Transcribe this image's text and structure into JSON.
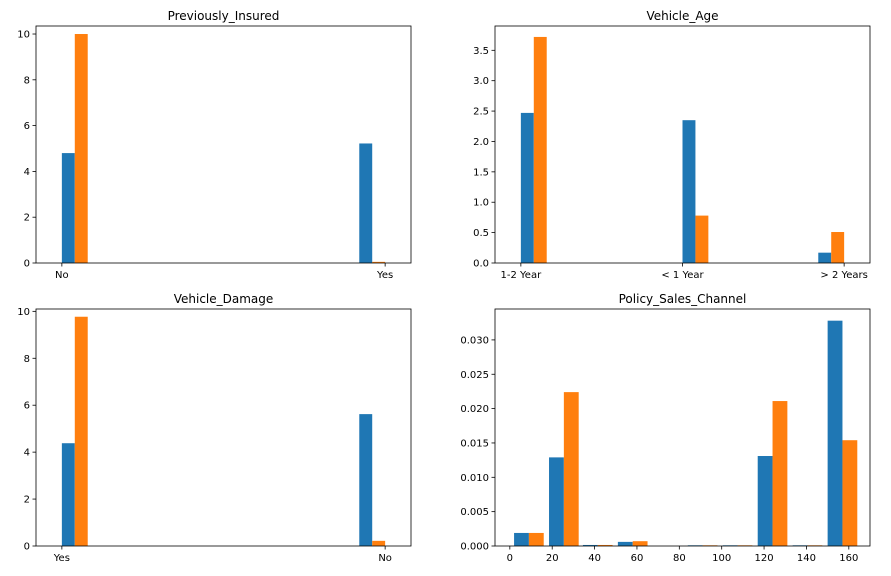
{
  "colors": {
    "series_a": "#1f77b4",
    "series_b": "#ff7f0e"
  },
  "chart_data": [
    {
      "type": "bar",
      "title": "Previously_Insured",
      "xlim": [
        -0.08,
        1.08
      ],
      "ylim": [
        0,
        10.35
      ],
      "x_ticks": [
        0,
        1
      ],
      "x_tick_labels": [
        "No",
        "Yes"
      ],
      "y_ticks": [
        0,
        2,
        4,
        6,
        8,
        10
      ],
      "y_tick_labels": [
        "0",
        "2",
        "4",
        "6",
        "8",
        "10"
      ],
      "bars": [
        {
          "series": 0,
          "x0": 0.0,
          "x1": 0.04,
          "value": 4.8
        },
        {
          "series": 1,
          "x0": 0.04,
          "x1": 0.08,
          "value": 10.0
        },
        {
          "series": 0,
          "x0": 0.92,
          "x1": 0.96,
          "value": 5.22
        },
        {
          "series": 1,
          "x0": 0.96,
          "x1": 1.0,
          "value": 0.05
        }
      ]
    },
    {
      "type": "bar",
      "title": "Vehicle_Age",
      "xlim": [
        -0.16,
        2.16
      ],
      "ylim": [
        0,
        3.9
      ],
      "x_ticks": [
        0,
        1,
        2
      ],
      "x_tick_labels": [
        "1-2 Year",
        "< 1 Year",
        "> 2 Years"
      ],
      "y_ticks": [
        0,
        0.5,
        1,
        1.5,
        2,
        2.5,
        3,
        3.5
      ],
      "y_tick_labels": [
        "0.0",
        "0.5",
        "1.0",
        "1.5",
        "2.0",
        "2.5",
        "3.0",
        "3.5"
      ],
      "bars": [
        {
          "series": 0,
          "x0": 0.0,
          "x1": 0.08,
          "value": 2.47
        },
        {
          "series": 1,
          "x0": 0.08,
          "x1": 0.16,
          "value": 3.72
        },
        {
          "series": 0,
          "x0": 1.0,
          "x1": 1.08,
          "value": 2.35
        },
        {
          "series": 1,
          "x0": 1.08,
          "x1": 1.16,
          "value": 0.78
        },
        {
          "series": 0,
          "x0": 1.84,
          "x1": 1.92,
          "value": 0.17
        },
        {
          "series": 1,
          "x0": 1.92,
          "x1": 2.0,
          "value": 0.51
        }
      ]
    },
    {
      "type": "bar",
      "title": "Vehicle_Damage",
      "xlim": [
        -0.08,
        1.08
      ],
      "ylim": [
        0,
        10.1
      ],
      "x_ticks": [
        0,
        1
      ],
      "x_tick_labels": [
        "Yes",
        "No"
      ],
      "y_ticks": [
        0,
        2,
        4,
        6,
        8,
        10
      ],
      "y_tick_labels": [
        "0",
        "2",
        "4",
        "6",
        "8",
        "10"
      ],
      "bars": [
        {
          "series": 0,
          "x0": 0.0,
          "x1": 0.04,
          "value": 4.38
        },
        {
          "series": 1,
          "x0": 0.04,
          "x1": 0.08,
          "value": 9.77
        },
        {
          "series": 0,
          "x0": 0.92,
          "x1": 0.96,
          "value": 5.62
        },
        {
          "series": 1,
          "x0": 0.96,
          "x1": 1.0,
          "value": 0.22
        }
      ]
    },
    {
      "type": "bar",
      "title": "Policy_Sales_Channel",
      "xlim": [
        -7,
        170
      ],
      "ylim": [
        0,
        0.0345
      ],
      "x_ticks": [
        0,
        20,
        40,
        60,
        80,
        100,
        120,
        140,
        160
      ],
      "x_tick_labels": [
        "0",
        "20",
        "40",
        "60",
        "80",
        "100",
        "120",
        "140",
        "160"
      ],
      "y_ticks": [
        0,
        0.005,
        0.01,
        0.015,
        0.02,
        0.025,
        0.03
      ],
      "y_tick_labels": [
        "0.000",
        "0.005",
        "0.010",
        "0.015",
        "0.020",
        "0.025",
        "0.030"
      ],
      "bars": [
        {
          "series": 0,
          "x0": 2,
          "x1": 9,
          "value": 0.0019
        },
        {
          "series": 1,
          "x0": 9,
          "x1": 16,
          "value": 0.0019
        },
        {
          "series": 0,
          "x0": 18.5,
          "x1": 25.5,
          "value": 0.0129
        },
        {
          "series": 1,
          "x0": 25.5,
          "x1": 32.5,
          "value": 0.0224
        },
        {
          "series": 0,
          "x0": 34.5,
          "x1": 41.5,
          "value": 0.00015
        },
        {
          "series": 1,
          "x0": 41.5,
          "x1": 48.5,
          "value": 0.00015
        },
        {
          "series": 0,
          "x0": 51,
          "x1": 58,
          "value": 0.0006
        },
        {
          "series": 1,
          "x0": 58,
          "x1": 65,
          "value": 0.0007
        },
        {
          "series": 0,
          "x0": 84,
          "x1": 91,
          "value": 0.0001
        },
        {
          "series": 1,
          "x0": 91,
          "x1": 98,
          "value": 0.0001
        },
        {
          "series": 0,
          "x0": 100.5,
          "x1": 107.5,
          "value": 0.0001
        },
        {
          "series": 1,
          "x0": 107.5,
          "x1": 114.5,
          "value": 0.0001
        },
        {
          "series": 0,
          "x0": 117,
          "x1": 124,
          "value": 0.0131
        },
        {
          "series": 1,
          "x0": 124,
          "x1": 131,
          "value": 0.0211
        },
        {
          "series": 0,
          "x0": 133.5,
          "x1": 140.5,
          "value": 0.0001
        },
        {
          "series": 1,
          "x0": 140.5,
          "x1": 147.5,
          "value": 0.0001
        },
        {
          "series": 0,
          "x0": 150,
          "x1": 157,
          "value": 0.0328
        },
        {
          "series": 1,
          "x0": 157,
          "x1": 164,
          "value": 0.0154
        }
      ]
    }
  ]
}
